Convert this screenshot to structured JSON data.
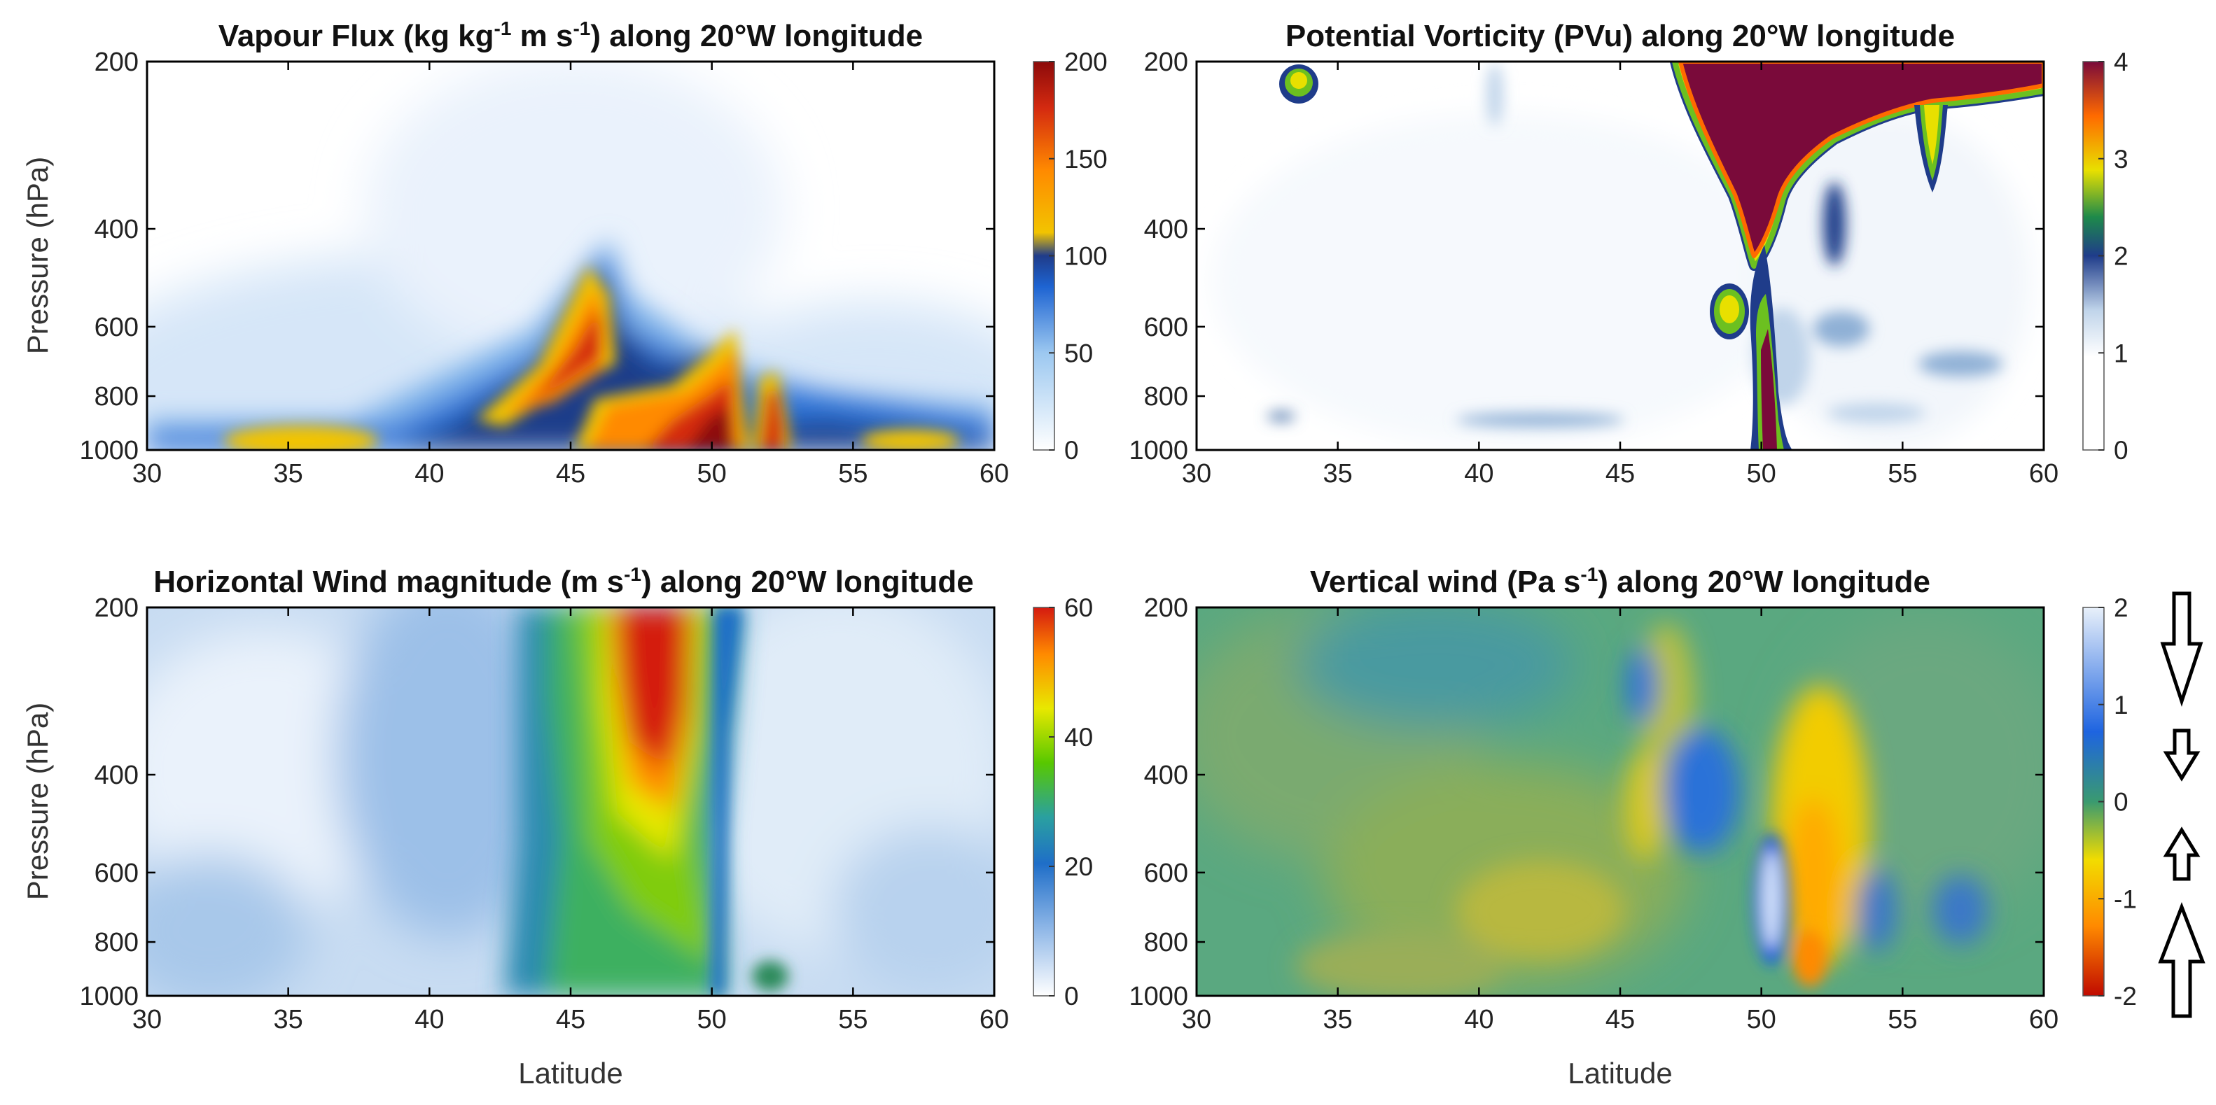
{
  "chart_data": [
    {
      "type": "heatmap",
      "title_parts": [
        "Vapour Flux (kg kg",
        "-1",
        " m s",
        "-1",
        ") along 20°W longitude"
      ],
      "xlabel": "",
      "ylabel": "Pressure (hPa)",
      "x_ticks": [
        "30",
        "35",
        "40",
        "45",
        "50",
        "55",
        "60"
      ],
      "y_ticks": [
        "200",
        "400",
        "600",
        "800",
        "1000"
      ],
      "xlim": [
        30,
        60
      ],
      "ylim": [
        1000,
        200
      ],
      "colorbar": {
        "ticks": [
          "0",
          "50",
          "100",
          "150",
          "200"
        ],
        "range": [
          0,
          200
        ],
        "colormap": [
          "#ffffff",
          "#9cc8f0",
          "#1e64d2",
          "#1f3c8a",
          "#f2c400",
          "#ff8a00",
          "#d42a10",
          "#8c0a0a"
        ]
      },
      "features": [
        {
          "lat": 45.5,
          "p": 650,
          "value": 190
        },
        {
          "lat": 50.5,
          "p": 920,
          "value": 200
        },
        {
          "lat": 52.0,
          "p": 920,
          "value": 190
        },
        {
          "lat": 33.0,
          "p": 950,
          "value": 70
        }
      ]
    },
    {
      "type": "heatmap",
      "title_parts": [
        "Potential Vorticity (PVu) along 20°W longitude"
      ],
      "xlabel": "",
      "ylabel": "",
      "x_ticks": [
        "30",
        "35",
        "40",
        "45",
        "50",
        "55",
        "60"
      ],
      "y_ticks": [
        "200",
        "400",
        "600",
        "800",
        "1000"
      ],
      "xlim": [
        30,
        60
      ],
      "ylim": [
        1000,
        200
      ],
      "colorbar": {
        "ticks": [
          "0",
          "1",
          "2",
          "3",
          "4"
        ],
        "range": [
          0,
          4
        ],
        "colormap": [
          "#ffffff",
          "#ffffff",
          "#c0d4ea",
          "#1f3c8a",
          "#1e8a4a",
          "#e8e000",
          "#ff6a00",
          "#7a0a3a"
        ]
      },
      "features": [
        {
          "lat": 50.5,
          "p": 300,
          "value": 4
        },
        {
          "lat": 51.3,
          "p": 850,
          "value": 4
        },
        {
          "lat": 48.7,
          "p": 610,
          "value": 3
        },
        {
          "lat": 33.5,
          "p": 220,
          "value": 2.5
        }
      ]
    },
    {
      "type": "heatmap",
      "title_parts": [
        "Horizontal Wind magnitude (m s",
        "-1",
        ") along 20°W longitude"
      ],
      "xlabel": "Latitude",
      "ylabel": "Pressure (hPa)",
      "x_ticks": [
        "30",
        "35",
        "40",
        "45",
        "50",
        "55",
        "60"
      ],
      "y_ticks": [
        "200",
        "400",
        "600",
        "800",
        "1000"
      ],
      "xlim": [
        30,
        60
      ],
      "ylim": [
        1000,
        200
      ],
      "colorbar": {
        "ticks": [
          "0",
          "20",
          "40",
          "60"
        ],
        "range": [
          0,
          60
        ],
        "colormap": [
          "#ffffff",
          "#8ab4e6",
          "#1f6ec8",
          "#2aa0a0",
          "#58c800",
          "#e8e800",
          "#ff8a00",
          "#d41a10"
        ]
      },
      "features": [
        {
          "lat": 47.5,
          "p": 350,
          "value": 60
        },
        {
          "lat": 47.0,
          "p": 600,
          "value": 45
        },
        {
          "lat": 40.0,
          "p": 500,
          "value": 20
        },
        {
          "lat": 55.0,
          "p": 500,
          "value": 5
        }
      ]
    },
    {
      "type": "heatmap",
      "title_parts": [
        "Vertical wind (Pa s",
        "-1",
        ") along 20°W longitude"
      ],
      "xlabel": "Latitude",
      "ylabel": "",
      "x_ticks": [
        "30",
        "35",
        "40",
        "45",
        "50",
        "55",
        "60"
      ],
      "y_ticks": [
        "200",
        "400",
        "600",
        "800",
        "1000"
      ],
      "xlim": [
        30,
        60
      ],
      "ylim": [
        1000,
        200
      ],
      "colorbar": {
        "ticks": [
          "2",
          "1",
          "0",
          "-1",
          "-2"
        ],
        "range": [
          -2,
          2
        ],
        "colormap": [
          "#e8f0fa",
          "#1e64e0",
          "#3a9a70",
          "#f2dc00",
          "#ff8a00",
          "#c00a00"
        ]
      },
      "features": [
        {
          "lat": 50.5,
          "p": 760,
          "value": 2
        },
        {
          "lat": 48.5,
          "p": 480,
          "value": 1.3
        },
        {
          "lat": 52.8,
          "p": 600,
          "value": -1.2
        },
        {
          "lat": 46.0,
          "p": 580,
          "value": -0.8
        }
      ],
      "arrows": [
        {
          "direction": "down",
          "magnitude": "large"
        },
        {
          "direction": "down",
          "magnitude": "small"
        },
        {
          "direction": "up",
          "magnitude": "small"
        },
        {
          "direction": "up",
          "magnitude": "large"
        }
      ]
    }
  ]
}
